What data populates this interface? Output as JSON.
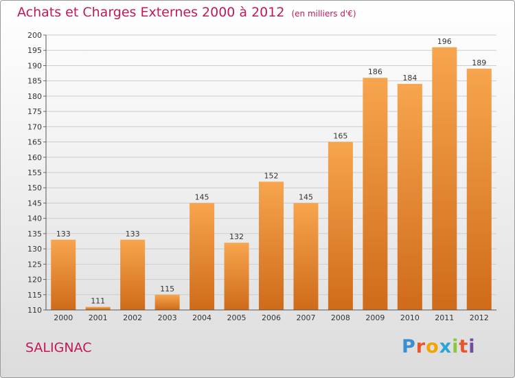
{
  "title": "Achats et Charges Externes 2000 à 2012",
  "unit": "(en milliers d'€)",
  "commune": "SALIGNAC",
  "logo": {
    "letters": [
      "P",
      "r",
      "o",
      "x",
      "i",
      "t",
      "i"
    ],
    "colors": [
      "#3a8fd1",
      "#e8542c",
      "#f2a400",
      "#2aa6d6",
      "#8cc63e",
      "#e8542c",
      "#6e4ea1"
    ]
  },
  "colors": {
    "bar_light": "#f7a54e",
    "bar_dark": "#cf6b1a",
    "title": "#c2185b",
    "grid": "#cccccc"
  },
  "chart_data": {
    "type": "bar",
    "categories": [
      "2000",
      "2001",
      "2002",
      "2003",
      "2004",
      "2005",
      "2006",
      "2007",
      "2008",
      "2009",
      "2010",
      "2011",
      "2012"
    ],
    "values": [
      133,
      111,
      133,
      115,
      145,
      132,
      152,
      145,
      165,
      186,
      184,
      196,
      189
    ],
    "ylim": [
      110,
      200
    ],
    "yticks": [
      110,
      115,
      120,
      125,
      130,
      135,
      140,
      145,
      150,
      155,
      160,
      165,
      170,
      175,
      180,
      185,
      190,
      195,
      200
    ],
    "grid": true,
    "title": "Achats et Charges Externes 2000 à 2012",
    "ylabel": "(en milliers d'€)"
  }
}
